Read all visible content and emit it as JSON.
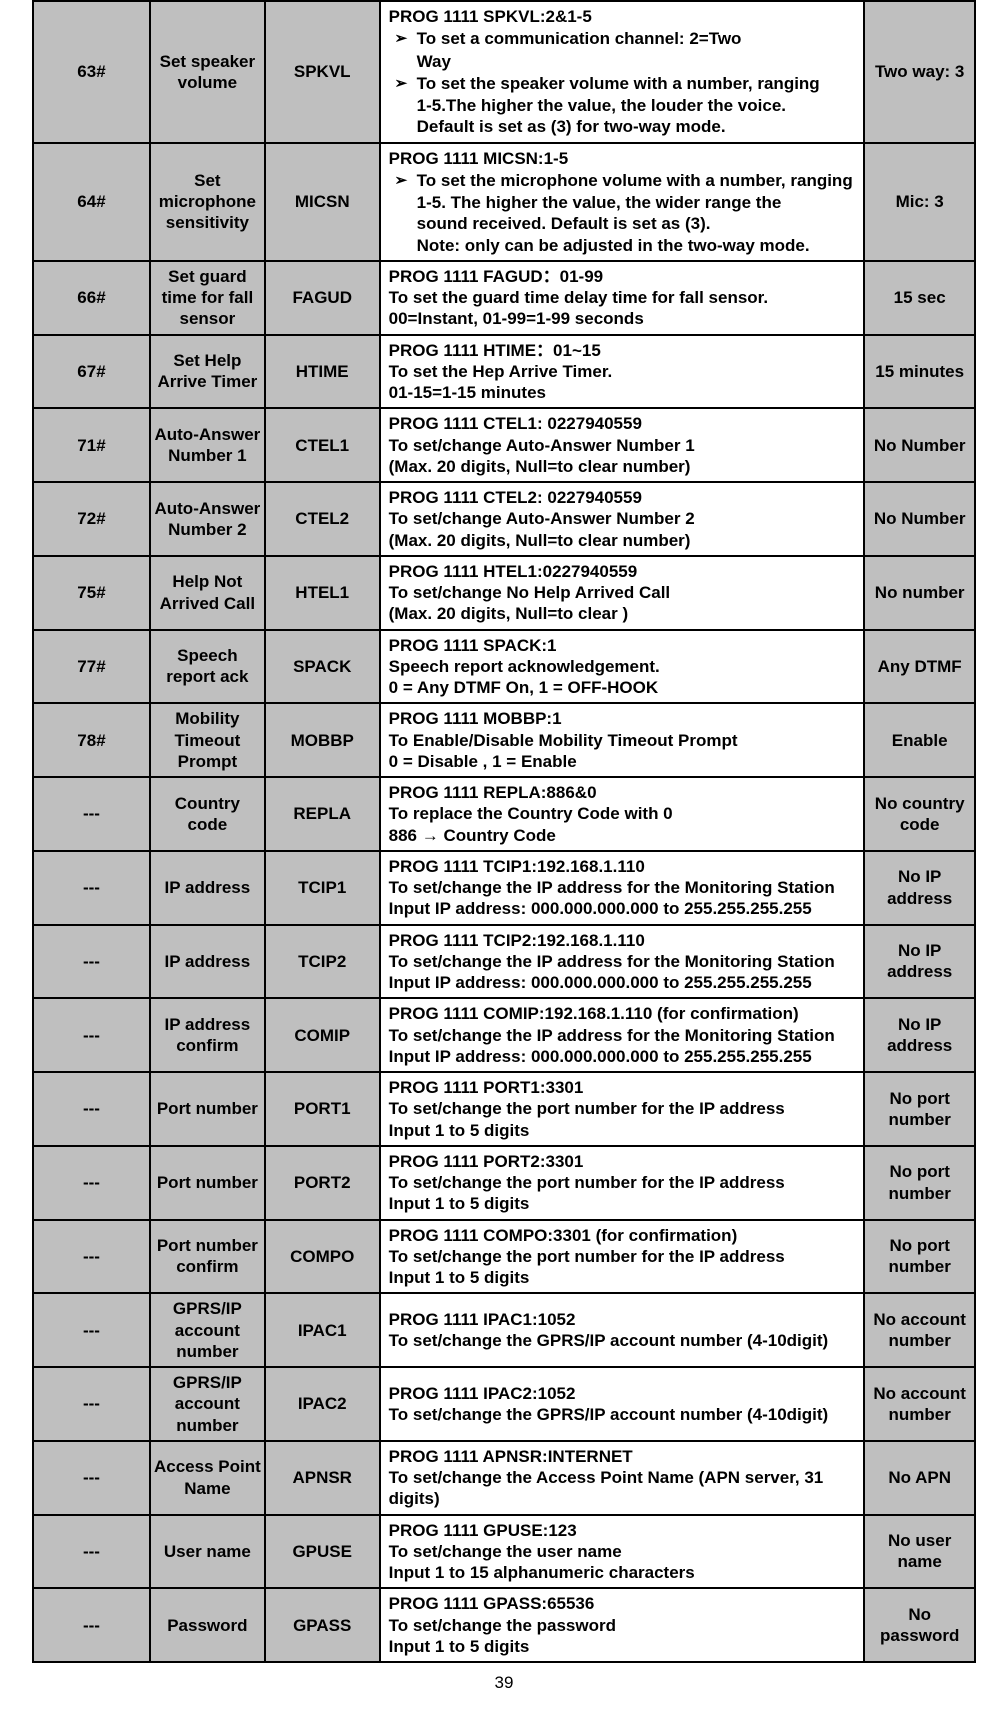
{
  "pageNumber": "39",
  "rows": [
    {
      "gray": true,
      "c1": "63#",
      "c2": "Set speaker volume",
      "c3": "SPKVL",
      "c4_type": "bullets",
      "c4": {
        "lead": "PROG 1111 SPKVL:2&1-5",
        "bullets": [
          {
            "first": "To set a communication channel: 2=Two",
            "cont": [
              "Way"
            ]
          },
          {
            "first": "To set the speaker volume with a number, ranging",
            "cont": [
              "1-5.The higher the value, the louder the voice.",
              "Default is set as (3) for two-way mode."
            ]
          }
        ]
      },
      "c5": "Two way: 3"
    },
    {
      "gray": true,
      "c1": "64#",
      "c2": "Set microphone sensitivity",
      "c3": "MICSN",
      "c4_type": "bullets",
      "c4": {
        "lead": "PROG 1111 MICSN:1-5",
        "bullets": [
          {
            "first": "To set the microphone volume with a number, ranging",
            "cont": [
              "1-5. The higher the value, the wider range the",
              "sound received. Default is set as (3).",
              "Note: only can be adjusted in the two-way mode."
            ]
          }
        ]
      },
      "c5": "Mic: 3"
    },
    {
      "gray": true,
      "c1": "66#",
      "c2": "Set guard time for fall sensor",
      "c3": "FAGUD",
      "c4_type": "lines",
      "c4": [
        "PROG 1111 FAGUD：01-99",
        "To set the guard time delay time for fall sensor.",
        "00=Instant, 01-99=1-99 seconds"
      ],
      "c5": "15 sec"
    },
    {
      "gray": true,
      "c1": "67#",
      "c2": "Set Help Arrive Timer",
      "c3": "HTIME",
      "c4_type": "lines",
      "c4": [
        "PROG 1111 HTIME：01~15",
        "To set the Hep Arrive Timer.",
        "01-15=1-15 minutes"
      ],
      "c5": "15 minutes"
    },
    {
      "gray": true,
      "c1": "71#",
      "c2": "Auto-Answer Number 1",
      "c3": "CTEL1",
      "c4_type": "lines",
      "c4": [
        "PROG 1111 CTEL1: 0227940559",
        "To set/change Auto-Answer Number 1",
        "(Max. 20 digits, Null=to clear number)"
      ],
      "c5": "No Number"
    },
    {
      "gray": true,
      "c1": "72#",
      "c2": "Auto-Answer Number 2",
      "c3": "CTEL2",
      "c4_type": "lines",
      "c4": [
        "PROG 1111 CTEL2: 0227940559",
        "To set/change Auto-Answer Number 2",
        "(Max. 20 digits, Null=to clear number)"
      ],
      "c5": "No Number"
    },
    {
      "gray": true,
      "c1": "75#",
      "c2": "Help Not Arrived Call",
      "c3": "HTEL1",
      "c4_type": "lines",
      "c4": [
        "PROG 1111 HTEL1:0227940559",
        "To set/change No Help Arrived Call",
        "(Max. 20 digits, Null=to clear )"
      ],
      "c5": "No number"
    },
    {
      "gray": true,
      "c1": "77#",
      "c2": "Speech report ack",
      "c3": "SPACK",
      "c4_type": "lines",
      "c4": [
        "PROG 1111 SPACK:1",
        "Speech report acknowledgement.",
        "0 = Any DTMF On, 1 = OFF-HOOK"
      ],
      "c5": "Any DTMF"
    },
    {
      "gray": true,
      "c1": "78#",
      "c2": "Mobility Timeout Prompt",
      "c3": "MOBBP",
      "c4_type": "lines",
      "c4": [
        "PROG 1111 MOBBP:1",
        "To Enable/Disable Mobility Timeout Prompt",
        "0 = Disable , 1 = Enable"
      ],
      "c5": "Enable"
    },
    {
      "gray": true,
      "c1": "---",
      "c2": "Country code",
      "c3": "REPLA",
      "c4_type": "lines",
      "c4": [
        "PROG 1111 REPLA:886&0",
        "To replace the Country Code with 0",
        "886 → Country Code"
      ],
      "c5": "No country code"
    },
    {
      "gray": true,
      "c1": "---",
      "c2": "IP address",
      "c3": "TCIP1",
      "c4_type": "lines",
      "c4": [
        "PROG 1111 TCIP1:192.168.1.110",
        "To set/change the IP address for the Monitoring Station",
        "Input IP address: 000.000.000.000 to 255.255.255.255"
      ],
      "c5": "No IP address"
    },
    {
      "gray": true,
      "c1": "---",
      "c2": "IP address",
      "c3": "TCIP2",
      "c4_type": "lines",
      "c4": [
        "PROG 1111 TCIP2:192.168.1.110",
        "To set/change the IP address for the Monitoring Station",
        "Input IP address: 000.000.000.000 to 255.255.255.255"
      ],
      "c5": "No IP address"
    },
    {
      "gray": true,
      "c1": "---",
      "c2": "IP address confirm",
      "c3": "COMIP",
      "c4_type": "lines",
      "c4": [
        "PROG 1111 COMIP:192.168.1.110 (for confirmation)",
        "To set/change the IP address for the Monitoring Station",
        "Input IP address: 000.000.000.000 to 255.255.255.255"
      ],
      "c5": "No IP address"
    },
    {
      "gray": true,
      "c1": "---",
      "c2": "Port number",
      "c3": "PORT1",
      "c4_type": "lines",
      "c4": [
        "PROG 1111  PORT1:3301",
        "To set/change the port number for the IP address",
        "Input 1 to 5 digits"
      ],
      "c5": "No port number"
    },
    {
      "gray": true,
      "c1": "---",
      "c2": "Port number",
      "c3": "PORT2",
      "c4_type": "lines",
      "c4": [
        "PROG 1111  PORT2:3301",
        "To set/change the port number for the IP address",
        "Input 1 to 5 digits"
      ],
      "c5": "No port number"
    },
    {
      "gray": true,
      "c1": "---",
      "c2": "Port number confirm",
      "c3": "COMPO",
      "c4_type": "lines",
      "c4": [
        "PROG 1111  COMPO:3301 (for confirmation)",
        "To set/change the port number for the IP address",
        "Input 1 to 5 digits"
      ],
      "c5": "No port number"
    },
    {
      "gray": true,
      "c1": "---",
      "c2": "GPRS/IP account number",
      "c3": "IPAC1",
      "c4_type": "lines",
      "c4": [
        "PROG 1111 IPAC1:1052",
        "To set/change the GPRS/IP account number (4-10digit)"
      ],
      "c5": "No account number"
    },
    {
      "gray": true,
      "c1": "---",
      "c2": "GPRS/IP account number",
      "c3": "IPAC2",
      "c4_type": "lines",
      "c4": [
        "PROG 1111 IPAC2:1052",
        "To set/change the GPRS/IP account number (4-10digit)"
      ],
      "c5": "No account number"
    },
    {
      "gray": true,
      "c1": "---",
      "c2": "Access Point Name",
      "c3": "APNSR",
      "c4_type": "lines",
      "c4": [
        "PROG 1111 APNSR:INTERNET",
        "To set/change the Access Point Name (APN server, 31 digits)"
      ],
      "c5": "No APN"
    },
    {
      "gray": true,
      "c1": "---",
      "c2": "User name",
      "c3": "GPUSE",
      "c4_type": "lines",
      "c4": [
        "PROG 1111 GPUSE:123",
        "To set/change the user name",
        "Input 1 to 15 alphanumeric characters"
      ],
      "c5": "No user name"
    },
    {
      "gray": true,
      "c1": "---",
      "c2": "Password",
      "c3": "GPASS",
      "c4_type": "lines",
      "c4": [
        "PROG 1111 GPASS:65536",
        "To set/change the password",
        "Input 1 to 5 digits"
      ],
      "c5": "No password"
    }
  ]
}
